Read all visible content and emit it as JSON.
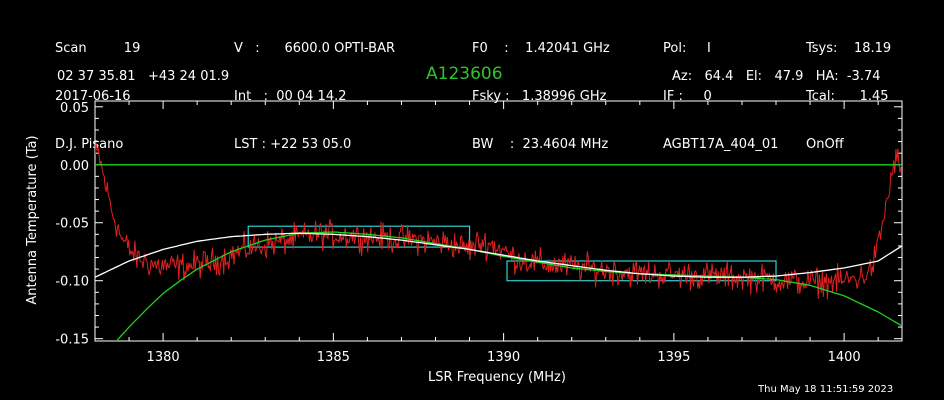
{
  "header": {
    "col1": [
      "Scan         19",
      "2017-06-16",
      "D.J. Pisano"
    ],
    "col2": [
      "V   :      6600.0 OPTI-BAR",
      "Int   :  00 04 14.2",
      "LST : +22 53 05.0"
    ],
    "col3": [
      "F0    :    1.42041 GHz",
      "Fsky :   1.38996 GHz",
      "BW    :  23.4604 MHz"
    ],
    "col4": [
      "Pol:     I",
      "IF :     0",
      "AGBT17A_404_01"
    ],
    "col5": [
      "Tsys:    18.19",
      "Tcal:      1.45",
      "OnOff"
    ],
    "coords": "02 37 35.81   +43 24 01.9",
    "object": "A123606",
    "pointing": "Az:   64.4   El:   47.9   HA:  -3.74"
  },
  "timestamp": "Thu May 18 11:51:59 2023",
  "colors": {
    "spectrum": "#e02020",
    "baseline_fit": "#ffffff",
    "model_fit": "#1fd21f",
    "zero_line": "#1fd21f",
    "region_boxes": "#2fd0d0",
    "axes": "#ffffff"
  },
  "chart_data": {
    "type": "line",
    "xlabel": "LSR Frequency (MHz)",
    "ylabel": "Antenna Temperature (Ta)",
    "xlim": [
      1378.0,
      1401.7
    ],
    "ylim": [
      -0.152,
      0.055
    ],
    "xticks": [
      1380,
      1385,
      1390,
      1395,
      1400
    ],
    "yticks": [
      0.05,
      0.0,
      -0.05,
      -0.1,
      -0.15
    ],
    "xtick_labels": [
      "1380",
      "1385",
      "1390",
      "1395",
      "1400"
    ],
    "ytick_labels": [
      "0.05",
      "0.00",
      "-0.05",
      "-0.10",
      "-0.15"
    ],
    "grid": false,
    "series": [
      {
        "role": "spectrum",
        "x": [
          1378.0,
          1378.1,
          1378.25,
          1378.5,
          1378.8,
          1379.2,
          1379.8,
          1380.5,
          1381.5,
          1382.5,
          1383.5,
          1384.5,
          1385.5,
          1386.5,
          1387.5,
          1388.5,
          1389.0,
          1389.3,
          1389.7,
          1390.3,
          1391.0,
          1392.0,
          1393.0,
          1394.0,
          1395.0,
          1396.0,
          1397.0,
          1398.0,
          1398.5,
          1399.0,
          1399.5,
          1400.0,
          1400.5,
          1400.8,
          1401.0,
          1401.2,
          1401.4,
          1401.5,
          1401.6,
          1401.7
        ],
        "y": [
          0.008,
          0.01,
          -0.01,
          -0.04,
          -0.065,
          -0.08,
          -0.087,
          -0.088,
          -0.084,
          -0.072,
          -0.066,
          -0.06,
          -0.061,
          -0.063,
          -0.065,
          -0.068,
          -0.073,
          -0.067,
          -0.069,
          -0.08,
          -0.085,
          -0.088,
          -0.091,
          -0.094,
          -0.095,
          -0.096,
          -0.097,
          -0.099,
          -0.101,
          -0.101,
          -0.101,
          -0.1,
          -0.097,
          -0.09,
          -0.07,
          -0.04,
          -0.01,
          0.005,
          0.003,
          -0.01
        ]
      },
      {
        "role": "baseline_fit",
        "x": [
          1378.0,
          1379.0,
          1380.0,
          1381.0,
          1382.0,
          1383.0,
          1384.0,
          1385.0,
          1386.0,
          1387.0,
          1388.0,
          1389.0,
          1390.0,
          1391.0,
          1392.0,
          1393.0,
          1394.0,
          1395.0,
          1396.0,
          1397.0,
          1398.0,
          1399.0,
          1400.0,
          1401.0,
          1401.7
        ],
        "y": [
          -0.097,
          -0.083,
          -0.073,
          -0.066,
          -0.062,
          -0.06,
          -0.059,
          -0.06,
          -0.062,
          -0.065,
          -0.069,
          -0.073,
          -0.078,
          -0.083,
          -0.087,
          -0.091,
          -0.094,
          -0.096,
          -0.097,
          -0.097,
          -0.096,
          -0.093,
          -0.089,
          -0.083,
          -0.07
        ]
      },
      {
        "role": "model_fit",
        "x": [
          1378.6,
          1379.0,
          1379.5,
          1380.0,
          1380.5,
          1381.0,
          1382.0,
          1383.0,
          1384.0,
          1385.0,
          1386.0,
          1387.0,
          1388.0,
          1389.0,
          1390.0,
          1391.0,
          1392.0,
          1393.0,
          1394.0,
          1395.0,
          1396.0,
          1397.0,
          1398.0,
          1399.0,
          1400.0,
          1401.0,
          1401.7
        ],
        "y": [
          -0.153,
          -0.14,
          -0.125,
          -0.111,
          -0.1,
          -0.09,
          -0.075,
          -0.065,
          -0.059,
          -0.058,
          -0.06,
          -0.063,
          -0.068,
          -0.073,
          -0.079,
          -0.084,
          -0.089,
          -0.092,
          -0.094,
          -0.095,
          -0.096,
          -0.097,
          -0.099,
          -0.104,
          -0.113,
          -0.127,
          -0.139
        ]
      },
      {
        "role": "zero_line",
        "x": [
          1378.0,
          1401.7
        ],
        "y": [
          0.0,
          0.0
        ]
      }
    ],
    "regions": [
      {
        "x0": 1382.5,
        "x1": 1389.0,
        "y0": -0.071,
        "y1": -0.053
      },
      {
        "x0": 1390.1,
        "x1": 1398.0,
        "y0": -0.1,
        "y1": -0.083
      }
    ]
  }
}
